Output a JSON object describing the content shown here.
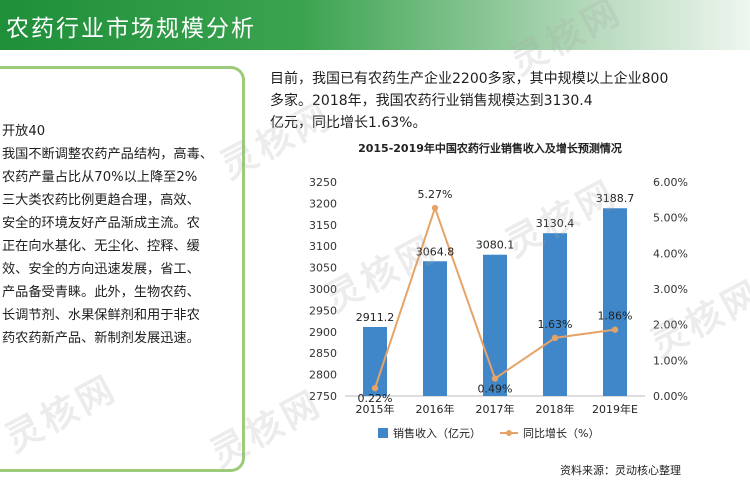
{
  "header": {
    "title": "农药行业市场规模分析"
  },
  "left_text": [
    "开放40",
    "我国不断调整农药产品结构，高毒、",
    "农药产量占比从70%以上降至2%",
    "三大类农药比例更趋合理，高效、",
    "安全的环境友好产品渐成主流。农",
    "正在向水基化、无尘化、控释、缓",
    "效、安全的方向迅速发展，省工、",
    "产品备受青睐。此外，生物农药、",
    "长调节剂、水果保鲜剂和用于非农",
    "药农药新产品、新制剂发展迅速。"
  ],
  "intro": [
    "目前，我国已有农药生产企业2200多家，其中规模以上企业800",
    "多家。2018年，我国农药行业销售规模达到3130.4",
    "亿元，同比增长1.63%。"
  ],
  "source": "资料来源：灵动核心整理",
  "watermark": "灵核网",
  "colors": {
    "bar": "#3f87c9",
    "line": "#e6a367",
    "header": "#2b9a44",
    "panel_border": "#9ccb7a"
  },
  "chart_data": {
    "type": "bar",
    "title": "2015-2019年中国农药行业销售收入及增长预测情况",
    "categories": [
      "2015年",
      "2016年",
      "2017年",
      "2018年",
      "2019年E"
    ],
    "series": [
      {
        "name": "销售收入（亿元）",
        "type": "bar",
        "axis": "left",
        "values": [
          2911.2,
          3064.8,
          3080.1,
          3130.4,
          3188.7
        ],
        "labels": [
          "2911.2",
          "3064.8",
          "3080.1",
          "3130.4",
          "3188.7"
        ]
      },
      {
        "name": "同比增长（%）",
        "type": "line",
        "axis": "right",
        "values": [
          0.22,
          5.27,
          0.49,
          1.63,
          1.86
        ],
        "labels": [
          "0.22%",
          "5.27%",
          "0.49%",
          "1.63%",
          "1.86%"
        ]
      }
    ],
    "ylim_left": [
      2750,
      3250
    ],
    "yticks_left": [
      "2750",
      "2800",
      "2850",
      "2900",
      "2950",
      "3000",
      "3050",
      "3100",
      "3150",
      "3200",
      "3250"
    ],
    "ylim_right": [
      0,
      6
    ],
    "yticks_right": [
      "0.00%",
      "1.00%",
      "2.00%",
      "3.00%",
      "4.00%",
      "5.00%",
      "6.00%"
    ],
    "legend": "bottom",
    "grid": false
  }
}
